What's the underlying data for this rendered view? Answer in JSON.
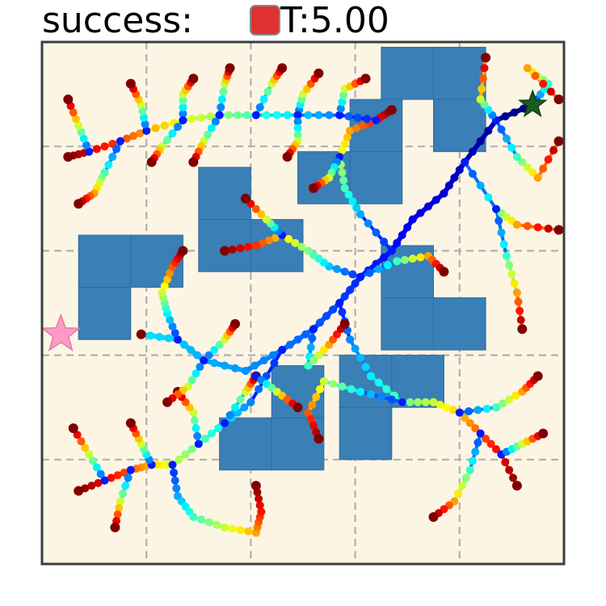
{
  "header": {
    "success_label": "success:",
    "time_label": "T:5.00",
    "status_color": "#e03131"
  },
  "chart_data": {
    "type": "scatter",
    "xlim": [
      0,
      5
    ],
    "ylim": [
      0,
      5
    ],
    "grid": true,
    "grid_style": "dashed",
    "background": "#fdf5e4",
    "colormap": "jet",
    "obstacle_color": "#3a7fb5",
    "start_marker": {
      "shape": "star",
      "color": "#ff99c8",
      "x": 0.18,
      "y": 2.2
    },
    "goal_marker": {
      "shape": "star",
      "color": "#1a5c20",
      "x": 4.7,
      "y": 4.4
    },
    "obstacles": [
      [
        3.25,
        4.45,
        0.5,
        0.5
      ],
      [
        3.75,
        4.45,
        0.5,
        0.5
      ],
      [
        3.75,
        3.95,
        0.5,
        0.5
      ],
      [
        2.95,
        3.95,
        0.5,
        0.5
      ],
      [
        2.95,
        3.45,
        0.5,
        0.5
      ],
      [
        2.45,
        3.45,
        0.5,
        0.5
      ],
      [
        1.5,
        3.3,
        0.5,
        0.5
      ],
      [
        1.5,
        2.8,
        0.5,
        0.5
      ],
      [
        2.0,
        2.8,
        0.5,
        0.5
      ],
      [
        0.35,
        2.65,
        0.5,
        0.5
      ],
      [
        0.85,
        2.65,
        0.5,
        0.5
      ],
      [
        0.35,
        2.15,
        0.5,
        0.5
      ],
      [
        3.25,
        2.55,
        0.5,
        0.5
      ],
      [
        3.25,
        2.05,
        0.5,
        0.5
      ],
      [
        3.75,
        2.05,
        0.5,
        0.5
      ],
      [
        2.2,
        1.4,
        0.5,
        0.5
      ],
      [
        1.7,
        0.9,
        0.5,
        0.5
      ],
      [
        2.2,
        0.9,
        0.5,
        0.5
      ],
      [
        2.85,
        1.5,
        0.5,
        0.5
      ],
      [
        3.35,
        1.5,
        0.5,
        0.5
      ],
      [
        2.85,
        1.0,
        0.5,
        0.5
      ]
    ],
    "tree_edges": [
      [
        [
          4.7,
          4.4
        ],
        [
          4.35,
          4.25
        ],
        [
          4.05,
          3.85
        ],
        [
          3.85,
          3.55
        ],
        [
          3.55,
          3.3
        ],
        [
          3.35,
          3.0
        ],
        [
          3.05,
          2.75
        ],
        [
          2.85,
          2.5
        ],
        [
          2.6,
          2.25
        ],
        [
          2.3,
          2.05
        ],
        [
          1.95,
          1.85
        ],
        [
          1.55,
          1.95
        ],
        [
          1.3,
          2.15
        ],
        [
          0.95,
          2.2
        ]
      ],
      [
        [
          4.05,
          3.85
        ],
        [
          4.35,
          3.4
        ],
        [
          4.55,
          3.25
        ],
        [
          4.95,
          3.2
        ]
      ],
      [
        [
          4.35,
          3.4
        ],
        [
          4.45,
          2.95
        ],
        [
          4.55,
          2.6
        ],
        [
          4.6,
          2.25
        ]
      ],
      [
        [
          4.35,
          4.25
        ],
        [
          4.55,
          3.9
        ],
        [
          4.75,
          3.7
        ],
        [
          4.95,
          4.05
        ]
      ],
      [
        [
          4.7,
          4.4
        ],
        [
          4.85,
          4.6
        ],
        [
          4.65,
          4.75
        ],
        [
          4.95,
          4.45
        ]
      ],
      [
        [
          4.35,
          4.25
        ],
        [
          4.2,
          4.45
        ],
        [
          4.25,
          4.85
        ]
      ],
      [
        [
          3.05,
          2.75
        ],
        [
          2.75,
          2.85
        ],
        [
          2.55,
          3.0
        ],
        [
          2.3,
          3.15
        ],
        [
          2.05,
          3.05
        ],
        [
          1.75,
          3.0
        ]
      ],
      [
        [
          2.3,
          3.15
        ],
        [
          2.15,
          3.3
        ],
        [
          1.95,
          3.5
        ]
      ],
      [
        [
          3.05,
          2.75
        ],
        [
          3.4,
          2.9
        ],
        [
          3.7,
          2.95
        ],
        [
          3.85,
          2.8
        ]
      ],
      [
        [
          2.85,
          2.5
        ],
        [
          2.95,
          2.15
        ],
        [
          3.15,
          1.8
        ],
        [
          3.45,
          1.55
        ],
        [
          3.75,
          1.55
        ],
        [
          4.0,
          1.45
        ],
        [
          4.2,
          1.25
        ],
        [
          4.4,
          1.05
        ],
        [
          4.55,
          0.75
        ]
      ],
      [
        [
          4.0,
          1.45
        ],
        [
          4.35,
          1.5
        ],
        [
          4.6,
          1.65
        ],
        [
          4.75,
          1.8
        ]
      ],
      [
        [
          4.4,
          1.05
        ],
        [
          4.6,
          1.15
        ],
        [
          4.8,
          1.25
        ]
      ],
      [
        [
          4.2,
          1.25
        ],
        [
          4.1,
          0.9
        ],
        [
          3.95,
          0.6
        ],
        [
          3.75,
          0.45
        ]
      ],
      [
        [
          3.45,
          1.55
        ],
        [
          3.05,
          1.65
        ],
        [
          2.7,
          1.75
        ],
        [
          2.55,
          1.45
        ],
        [
          2.65,
          1.2
        ]
      ],
      [
        [
          2.6,
          2.25
        ],
        [
          2.55,
          1.9
        ],
        [
          2.75,
          2.1
        ],
        [
          2.9,
          2.3
        ]
      ],
      [
        [
          2.3,
          2.05
        ],
        [
          2.0,
          1.55
        ],
        [
          1.75,
          1.35
        ],
        [
          1.5,
          1.15
        ],
        [
          1.25,
          0.95
        ],
        [
          1.05,
          0.95
        ],
        [
          0.85,
          0.9
        ],
        [
          0.6,
          0.8
        ],
        [
          0.35,
          0.7
        ]
      ],
      [
        [
          1.05,
          0.95
        ],
        [
          0.95,
          1.15
        ],
        [
          0.85,
          1.35
        ]
      ],
      [
        [
          0.6,
          0.8
        ],
        [
          0.45,
          1.05
        ],
        [
          0.3,
          1.3
        ]
      ],
      [
        [
          0.85,
          0.9
        ],
        [
          0.75,
          0.6
        ],
        [
          0.7,
          0.35
        ]
      ],
      [
        [
          1.25,
          0.95
        ],
        [
          1.3,
          0.65
        ],
        [
          1.45,
          0.45
        ],
        [
          1.75,
          0.35
        ],
        [
          2.05,
          0.3
        ],
        [
          2.1,
          0.5
        ],
        [
          2.05,
          0.75
        ]
      ],
      [
        [
          1.5,
          1.15
        ],
        [
          1.45,
          1.45
        ],
        [
          1.3,
          1.65
        ]
      ],
      [
        [
          1.75,
          1.35
        ],
        [
          1.95,
          1.65
        ],
        [
          2.05,
          1.8
        ]
      ],
      [
        [
          1.55,
          1.95
        ],
        [
          1.4,
          1.7
        ],
        [
          1.2,
          1.55
        ]
      ],
      [
        [
          1.3,
          2.15
        ],
        [
          1.2,
          2.4
        ],
        [
          1.15,
          2.6
        ],
        [
          1.25,
          2.85
        ],
        [
          1.35,
          3.0
        ]
      ],
      [
        [
          1.55,
          1.95
        ],
        [
          1.75,
          2.15
        ],
        [
          1.85,
          2.3
        ]
      ],
      [
        [
          2.05,
          1.8
        ],
        [
          2.25,
          1.65
        ],
        [
          2.45,
          1.5
        ]
      ],
      [
        [
          3.35,
          3.0
        ],
        [
          3.05,
          3.35
        ],
        [
          2.9,
          3.6
        ],
        [
          2.85,
          3.9
        ],
        [
          2.95,
          4.15
        ],
        [
          3.2,
          4.25
        ],
        [
          3.35,
          4.35
        ]
      ],
      [
        [
          3.2,
          4.25
        ],
        [
          2.85,
          4.3
        ],
        [
          2.45,
          4.3
        ],
        [
          2.05,
          4.3
        ],
        [
          1.7,
          4.3
        ],
        [
          1.35,
          4.25
        ],
        [
          1.0,
          4.15
        ],
        [
          0.75,
          4.05
        ],
        [
          0.45,
          3.95
        ],
        [
          0.25,
          3.9
        ]
      ],
      [
        [
          0.75,
          4.05
        ],
        [
          0.6,
          3.75
        ],
        [
          0.5,
          3.55
        ],
        [
          0.35,
          3.45
        ]
      ],
      [
        [
          0.45,
          3.95
        ],
        [
          0.35,
          4.2
        ],
        [
          0.25,
          4.45
        ]
      ],
      [
        [
          1.0,
          4.15
        ],
        [
          0.95,
          4.4
        ],
        [
          0.85,
          4.6
        ]
      ],
      [
        [
          1.35,
          4.25
        ],
        [
          1.35,
          4.5
        ],
        [
          1.45,
          4.65
        ]
      ],
      [
        [
          1.7,
          4.3
        ],
        [
          1.75,
          4.6
        ],
        [
          1.8,
          4.75
        ]
      ],
      [
        [
          2.05,
          4.3
        ],
        [
          2.2,
          4.6
        ],
        [
          2.3,
          4.75
        ]
      ],
      [
        [
          2.45,
          4.3
        ],
        [
          2.5,
          4.5
        ],
        [
          2.65,
          4.7
        ]
      ],
      [
        [
          2.85,
          4.3
        ],
        [
          2.9,
          4.55
        ],
        [
          3.1,
          4.65
        ]
      ],
      [
        [
          1.7,
          4.3
        ],
        [
          1.55,
          4.05
        ],
        [
          1.45,
          3.85
        ]
      ],
      [
        [
          2.45,
          4.3
        ],
        [
          2.45,
          4.05
        ],
        [
          2.35,
          3.9
        ]
      ],
      [
        [
          1.35,
          4.25
        ],
        [
          1.15,
          4.0
        ],
        [
          1.05,
          3.85
        ]
      ],
      [
        [
          2.85,
          3.9
        ],
        [
          2.75,
          3.7
        ],
        [
          2.6,
          3.6
        ]
      ]
    ]
  }
}
